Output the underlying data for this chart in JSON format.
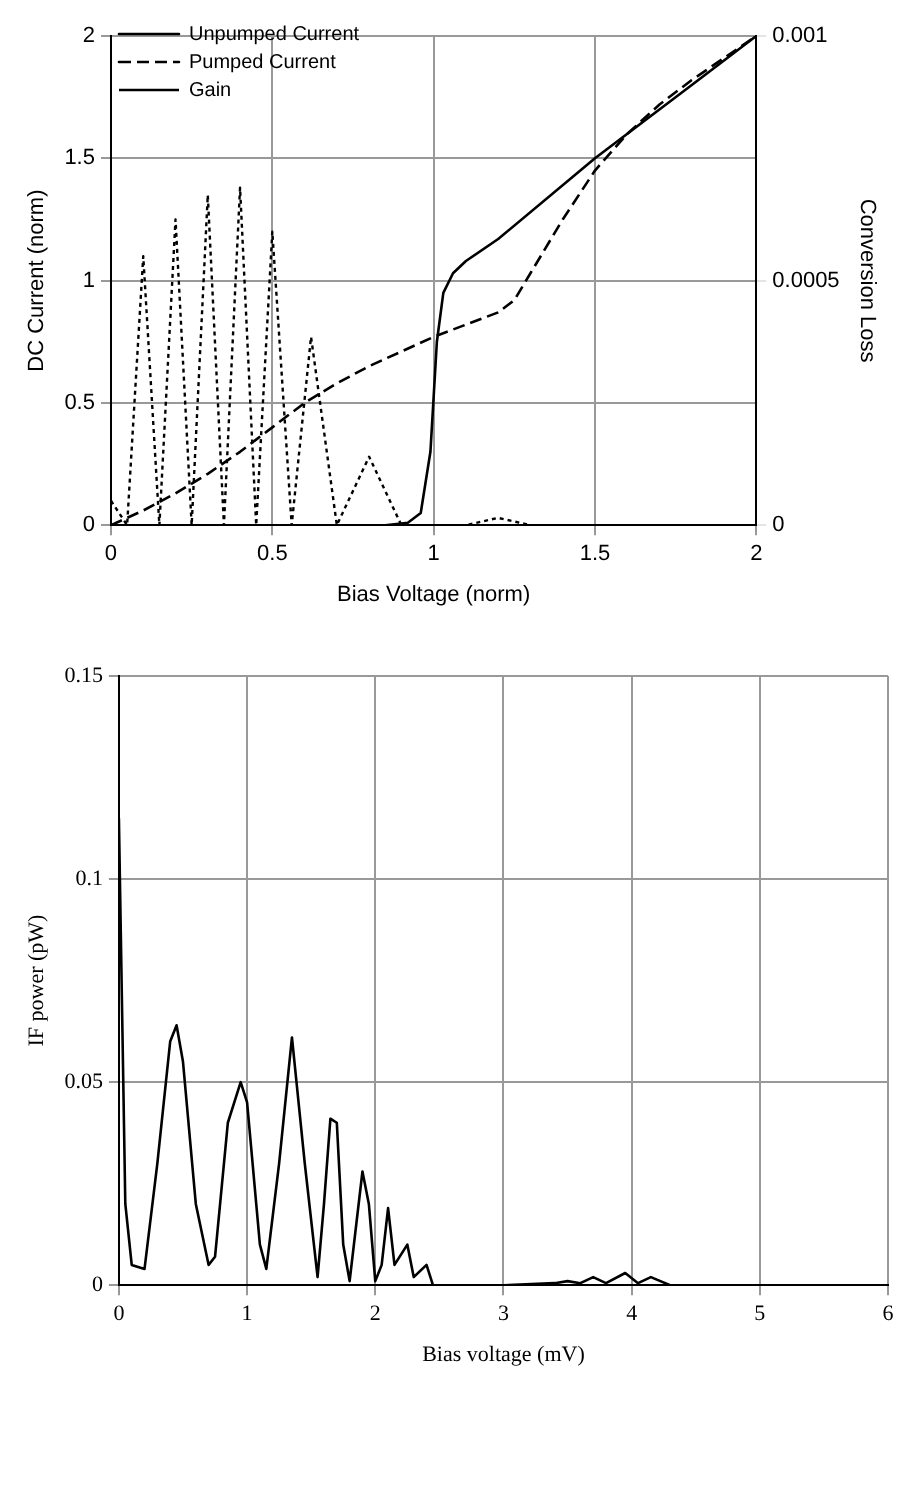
{
  "chart_data": [
    {
      "type": "line",
      "xlabel": "Bias Voltage (norm)",
      "ylabel": "DC Current (norm)",
      "y2label": "Conversion Loss",
      "xlim": [
        0,
        2
      ],
      "xticks": [
        0,
        0.5,
        1,
        1.5,
        2
      ],
      "ylim": [
        0,
        2
      ],
      "yticks": [
        0,
        0.5,
        1,
        1.5,
        2
      ],
      "y2lim": [
        0,
        0.001
      ],
      "y2ticks": [
        0,
        0.0005,
        0.001
      ],
      "grid": true,
      "legend": "top left",
      "marker": "none",
      "series": [
        {
          "name": "Unpumped Current",
          "color": "#000000",
          "line_style": "solid",
          "x": [
            0,
            0.5,
            0.85,
            0.92,
            0.96,
            0.99,
            1.01,
            1.03,
            1.06,
            1.1,
            1.2,
            1.5,
            1.8,
            2
          ],
          "values": [
            0,
            0,
            0,
            0.01,
            0.05,
            0.3,
            0.75,
            0.95,
            1.03,
            1.08,
            1.17,
            1.5,
            1.8,
            2
          ]
        },
        {
          "name": "Pumped Current",
          "color": "#000000",
          "line_style": "dashed",
          "x": [
            0,
            0.1,
            0.2,
            0.3,
            0.4,
            0.5,
            0.6,
            0.7,
            0.8,
            0.9,
            1.0,
            1.1,
            1.2,
            1.25,
            1.3,
            1.4,
            1.5,
            1.6,
            1.7,
            1.8,
            1.9,
            2
          ],
          "values": [
            0,
            0.06,
            0.13,
            0.21,
            0.3,
            0.4,
            0.5,
            0.58,
            0.65,
            0.71,
            0.77,
            0.82,
            0.87,
            0.92,
            1.03,
            1.25,
            1.45,
            1.6,
            1.72,
            1.82,
            1.91,
            2
          ]
        },
        {
          "name": "Gain",
          "color": "#000000",
          "line_style": "dotted",
          "axis": "y2",
          "x": [
            0,
            0.05,
            0.1,
            0.15,
            0.2,
            0.25,
            0.3,
            0.35,
            0.4,
            0.45,
            0.5,
            0.56,
            0.62,
            0.7,
            0.8,
            0.9,
            1.0,
            1.1,
            1.2,
            1.3,
            1.4,
            2
          ],
          "values": [
            5e-05,
            0,
            0.00055,
            0,
            0.000625,
            0,
            0.000675,
            0,
            0.00069,
            0,
            0.0006,
            0,
            0.000385,
            0,
            0.00014,
            0,
            0,
            0,
            1.5e-05,
            0,
            0,
            0
          ]
        }
      ]
    },
    {
      "type": "line",
      "xlabel": "Bias voltage (mV)",
      "ylabel": "IF power (pW)",
      "xlim": [
        0,
        6
      ],
      "xticks": [
        0,
        1,
        2,
        3,
        4,
        5,
        6
      ],
      "ylim": [
        0,
        0.15
      ],
      "yticks": [
        0,
        0.05,
        0.1,
        0.15
      ],
      "grid": true,
      "marker": "none",
      "series": [
        {
          "color": "#000000",
          "line_style": "solid",
          "x": [
            0,
            0.05,
            0.1,
            0.2,
            0.3,
            0.4,
            0.45,
            0.5,
            0.6,
            0.7,
            0.75,
            0.85,
            0.95,
            1.0,
            1.1,
            1.15,
            1.25,
            1.35,
            1.45,
            1.55,
            1.6,
            1.65,
            1.7,
            1.75,
            1.8,
            1.9,
            1.95,
            2.0,
            2.05,
            2.1,
            2.15,
            2.25,
            2.3,
            2.4,
            2.45,
            3.0,
            3.4,
            3.5,
            3.6,
            3.7,
            3.8,
            3.95,
            4.05,
            4.15,
            4.3
          ],
          "values": [
            0.115,
            0.02,
            0.005,
            0.004,
            0.03,
            0.06,
            0.064,
            0.055,
            0.02,
            0.005,
            0.007,
            0.04,
            0.05,
            0.045,
            0.01,
            0.004,
            0.03,
            0.061,
            0.03,
            0.002,
            0.02,
            0.041,
            0.04,
            0.01,
            0.001,
            0.028,
            0.02,
            0.001,
            0.005,
            0.019,
            0.005,
            0.01,
            0.002,
            0.005,
            0,
            0,
            0.0005,
            0.001,
            0.0005,
            0.002,
            0.0005,
            0.003,
            0.0005,
            0.002,
            0
          ]
        }
      ]
    }
  ]
}
